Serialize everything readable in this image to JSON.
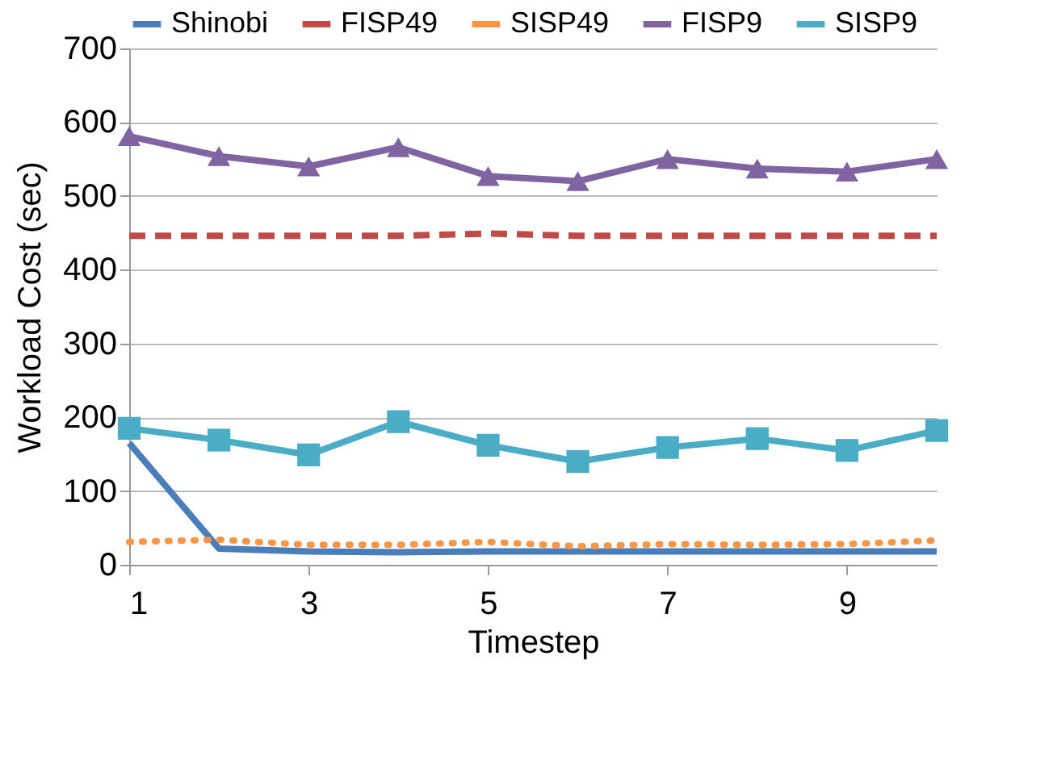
{
  "chart_data": {
    "type": "line",
    "xlabel": "Timestep",
    "ylabel": "Workload Cost (sec)",
    "x": [
      1,
      2,
      3,
      4,
      5,
      6,
      7,
      8,
      9,
      10
    ],
    "xlim": [
      1,
      10
    ],
    "xticks": [
      1,
      3,
      5,
      7,
      9
    ],
    "ylim": [
      0,
      700
    ],
    "yticks": [
      0,
      100,
      200,
      300,
      400,
      500,
      600,
      700
    ],
    "grid": "y",
    "legend": "top",
    "series": [
      {
        "name": "Shinobi",
        "color": "#4a7ebb",
        "line_style": "solid",
        "marker": "none",
        "values": [
          165,
          22,
          18,
          17,
          18,
          18,
          18,
          18,
          18,
          18
        ]
      },
      {
        "name": "FISP49",
        "color": "#be4b48",
        "line_style": "dashed",
        "marker": "none",
        "values": [
          446,
          446,
          446,
          446,
          449,
          446,
          446,
          446,
          446,
          446
        ]
      },
      {
        "name": "SISP49",
        "color": "#f79646",
        "line_style": "dotted",
        "marker": "none",
        "values": [
          31,
          34,
          27,
          27,
          31,
          25,
          28,
          27,
          28,
          33
        ]
      },
      {
        "name": "FISP9",
        "color": "#8064a2",
        "line_style": "solid",
        "marker": "triangle",
        "values": [
          581,
          554,
          540,
          566,
          527,
          520,
          550,
          537,
          533,
          550
        ]
      },
      {
        "name": "SISP9",
        "color": "#4bacc6",
        "line_style": "solid",
        "marker": "square",
        "values": [
          185,
          169,
          149,
          194,
          162,
          140,
          159,
          171,
          155,
          182
        ]
      }
    ]
  }
}
